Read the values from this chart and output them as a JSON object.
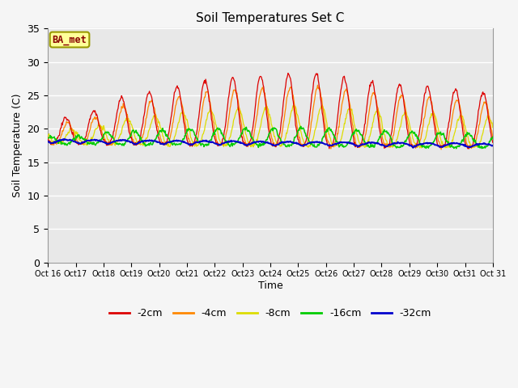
{
  "title": "Soil Temperatures Set C",
  "xlabel": "Time",
  "ylabel": "Soil Temperature (C)",
  "ylim": [
    0,
    35
  ],
  "yticks": [
    0,
    5,
    10,
    15,
    20,
    25,
    30,
    35
  ],
  "x_labels": [
    "Oct 16",
    "Oct 17",
    "Oct 18",
    "Oct 19",
    "Oct 20",
    "Oct 21",
    "Oct 22",
    "Oct 23",
    "Oct 24",
    "Oct 25",
    "Oct 26",
    "Oct 27",
    "Oct 28",
    "Oct 29",
    "Oct 30",
    "Oct 31"
  ],
  "colors": {
    "-2cm": "#dd0000",
    "-4cm": "#ff8800",
    "-8cm": "#dddd00",
    "-16cm": "#00cc00",
    "-32cm": "#0000cc"
  },
  "legend_label": "BA_met",
  "fig_bg": "#f5f5f5",
  "plot_bg": "#e8e8e8"
}
